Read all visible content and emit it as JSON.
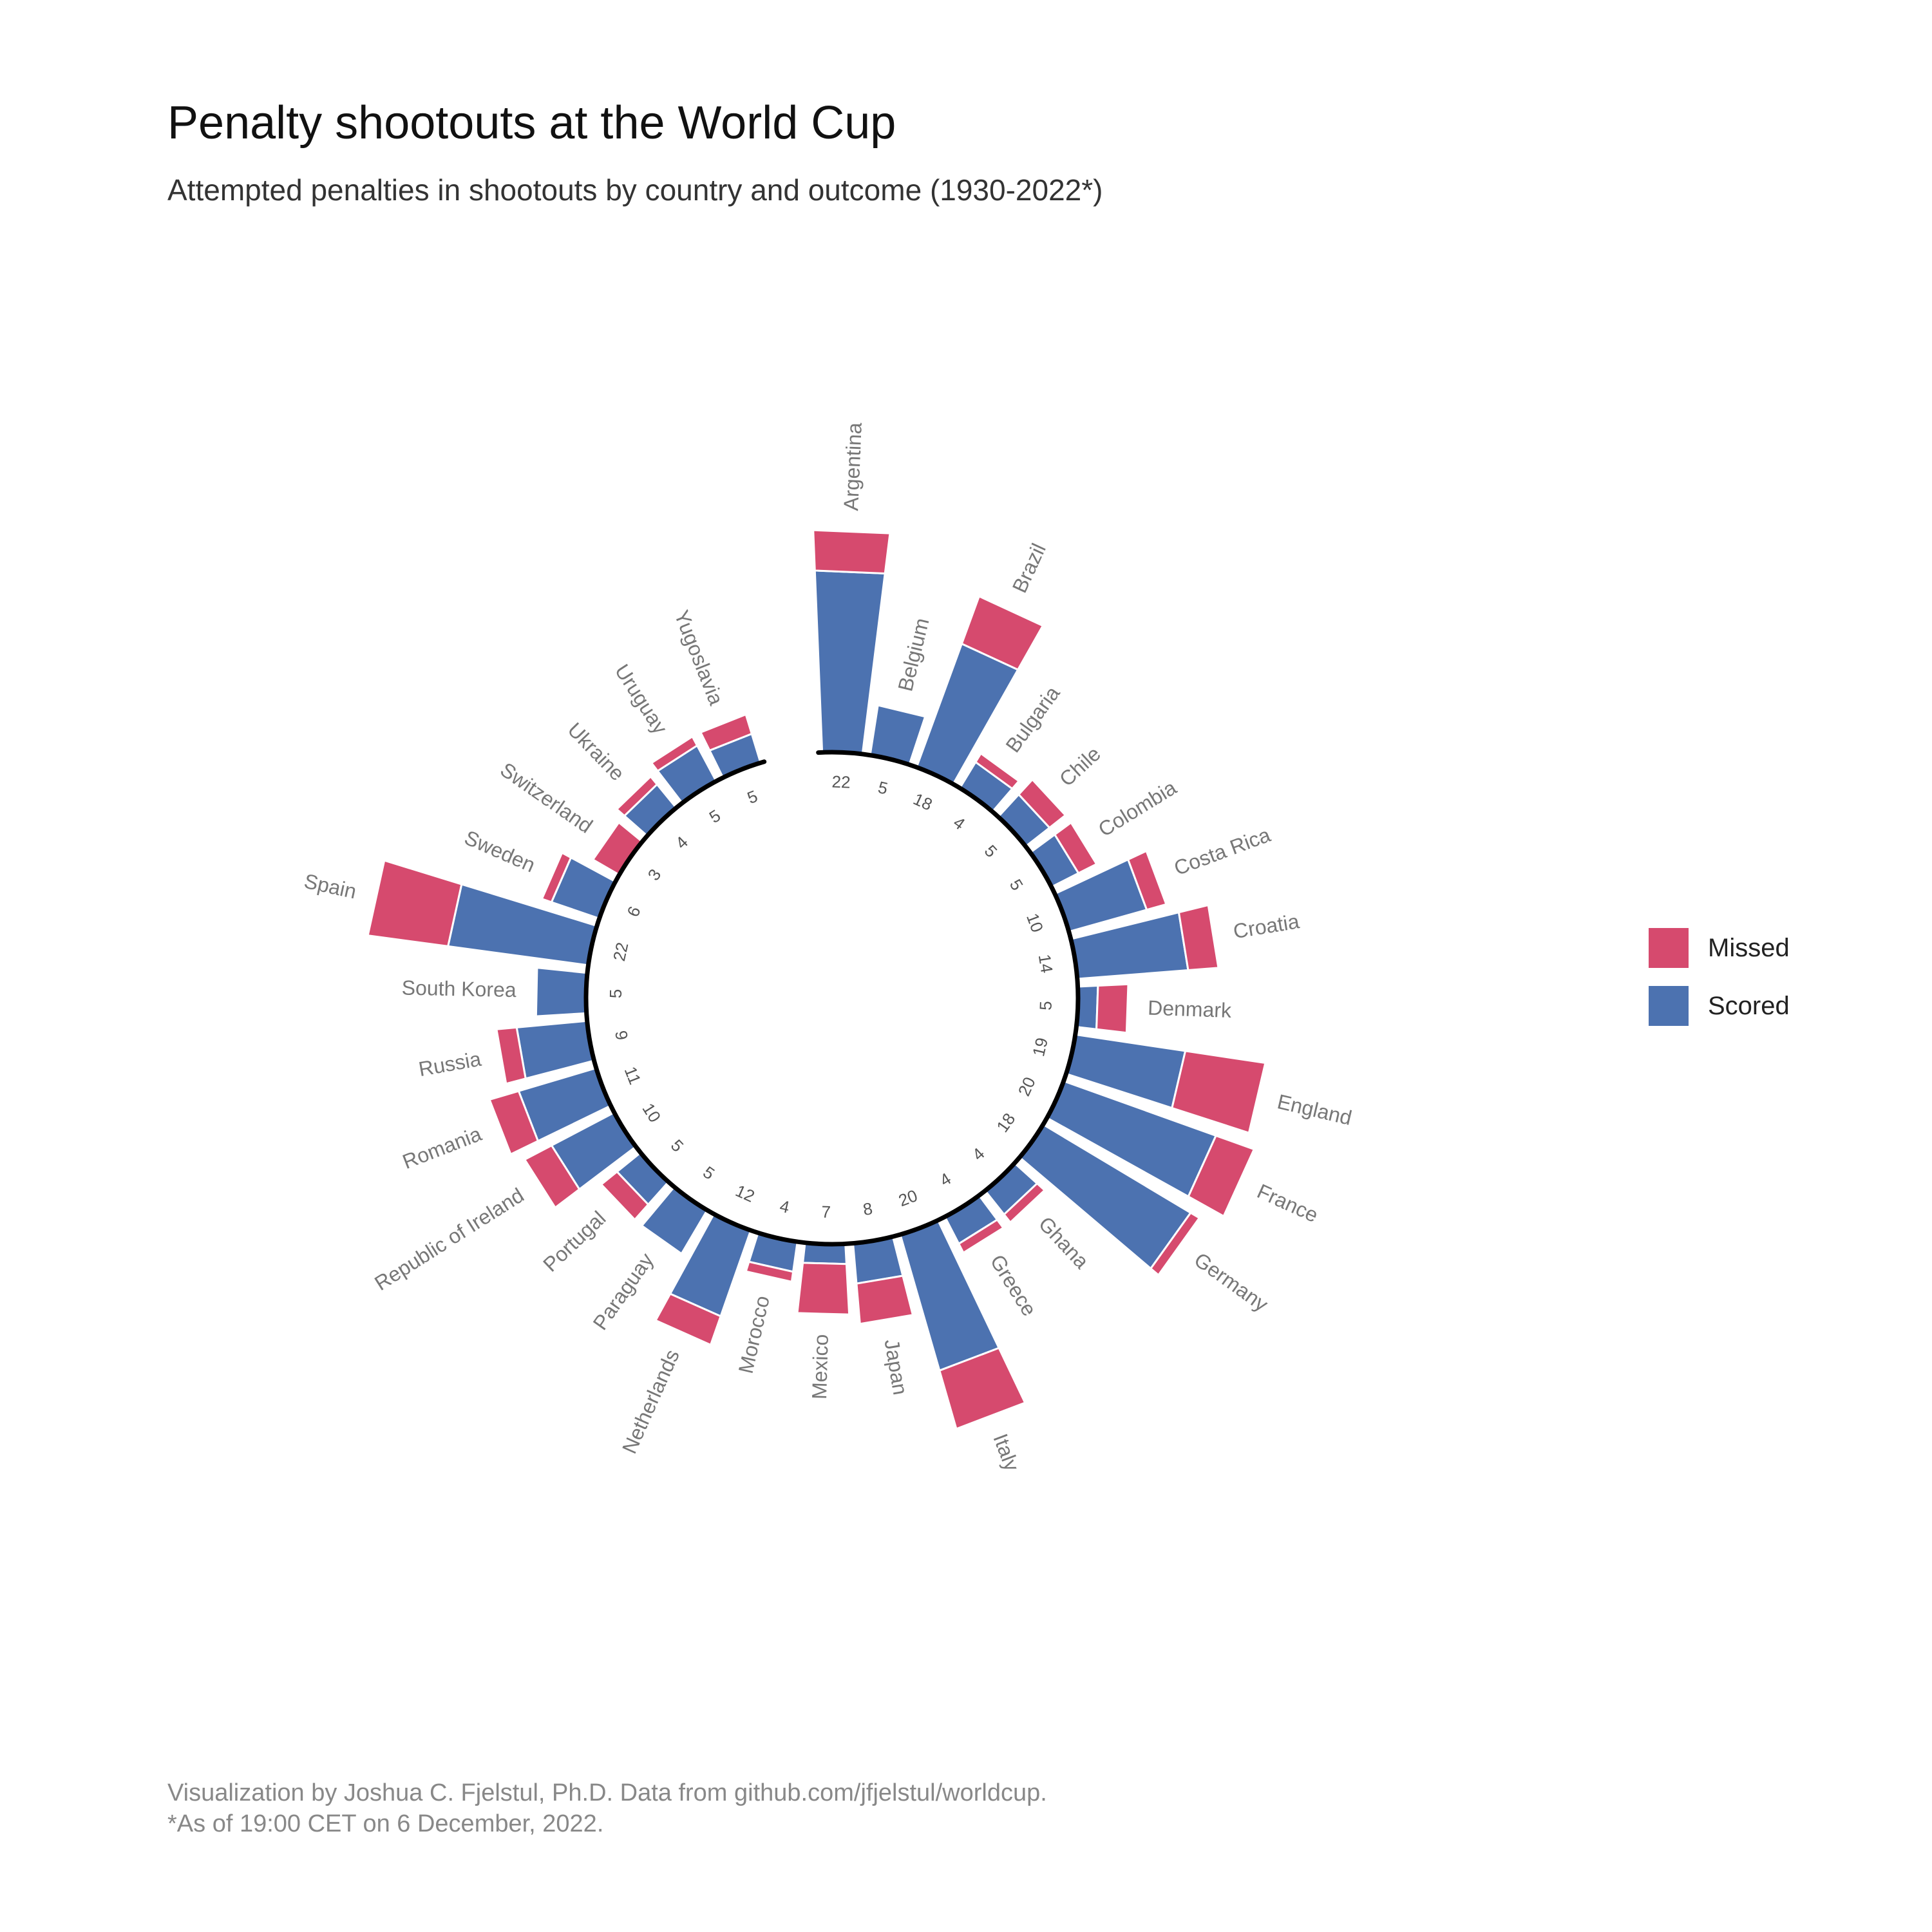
{
  "title": "Penalty shootouts at the World Cup",
  "subtitle": "Attempted penalties in shootouts by country and outcome (1930-2022*)",
  "caption_line1": "Visualization by Joshua C. Fjelstul, Ph.D. Data from github.com/jfjelstul/worldcup.",
  "caption_line2": "*As of 19:00 CET on 6 December, 2022.",
  "colors": {
    "scored": "#4C72B0",
    "missed": "#D64A6E",
    "axis": "#000000",
    "label": "#777777",
    "count": "#555555"
  },
  "legend": [
    {
      "label": "Missed",
      "color": "#D64A6E"
    },
    {
      "label": "Scored",
      "color": "#4C72B0"
    }
  ],
  "chart_data": {
    "type": "circular-stacked-bar",
    "series": [
      "Scored",
      "Missed"
    ],
    "categories": [
      "Argentina",
      "Belgium",
      "Brazil",
      "Bulgaria",
      "Chile",
      "Colombia",
      "Costa Rica",
      "Croatia",
      "Denmark",
      "England",
      "France",
      "Germany",
      "Ghana",
      "Greece",
      "Italy",
      "Japan",
      "Mexico",
      "Morocco",
      "Netherlands",
      "Paraguay",
      "Portugal",
      "Republic of Ireland",
      "Romania",
      "Russia",
      "South Korea",
      "Spain",
      "Sweden",
      "Switzerland",
      "Ukraine",
      "Uruguay",
      "Yugoslavia"
    ],
    "totals": [
      22,
      5,
      18,
      4,
      5,
      5,
      10,
      14,
      5,
      19,
      20,
      18,
      4,
      4,
      20,
      8,
      7,
      4,
      12,
      5,
      5,
      10,
      11,
      9,
      5,
      22,
      6,
      3,
      4,
      5,
      5
    ],
    "scored": [
      18,
      5,
      13,
      3,
      3,
      3,
      8,
      11,
      2,
      11,
      16,
      17,
      3,
      3,
      14,
      4,
      2,
      3,
      9,
      5,
      3,
      7,
      8,
      7,
      5,
      14,
      5,
      0,
      3,
      4,
      3
    ],
    "missed": [
      4,
      0,
      5,
      1,
      2,
      2,
      2,
      3,
      3,
      8,
      4,
      1,
      1,
      1,
      6,
      4,
      5,
      1,
      3,
      0,
      2,
      3,
      3,
      2,
      0,
      8,
      1,
      3,
      1,
      1,
      2
    ],
    "axis_max": 22
  }
}
